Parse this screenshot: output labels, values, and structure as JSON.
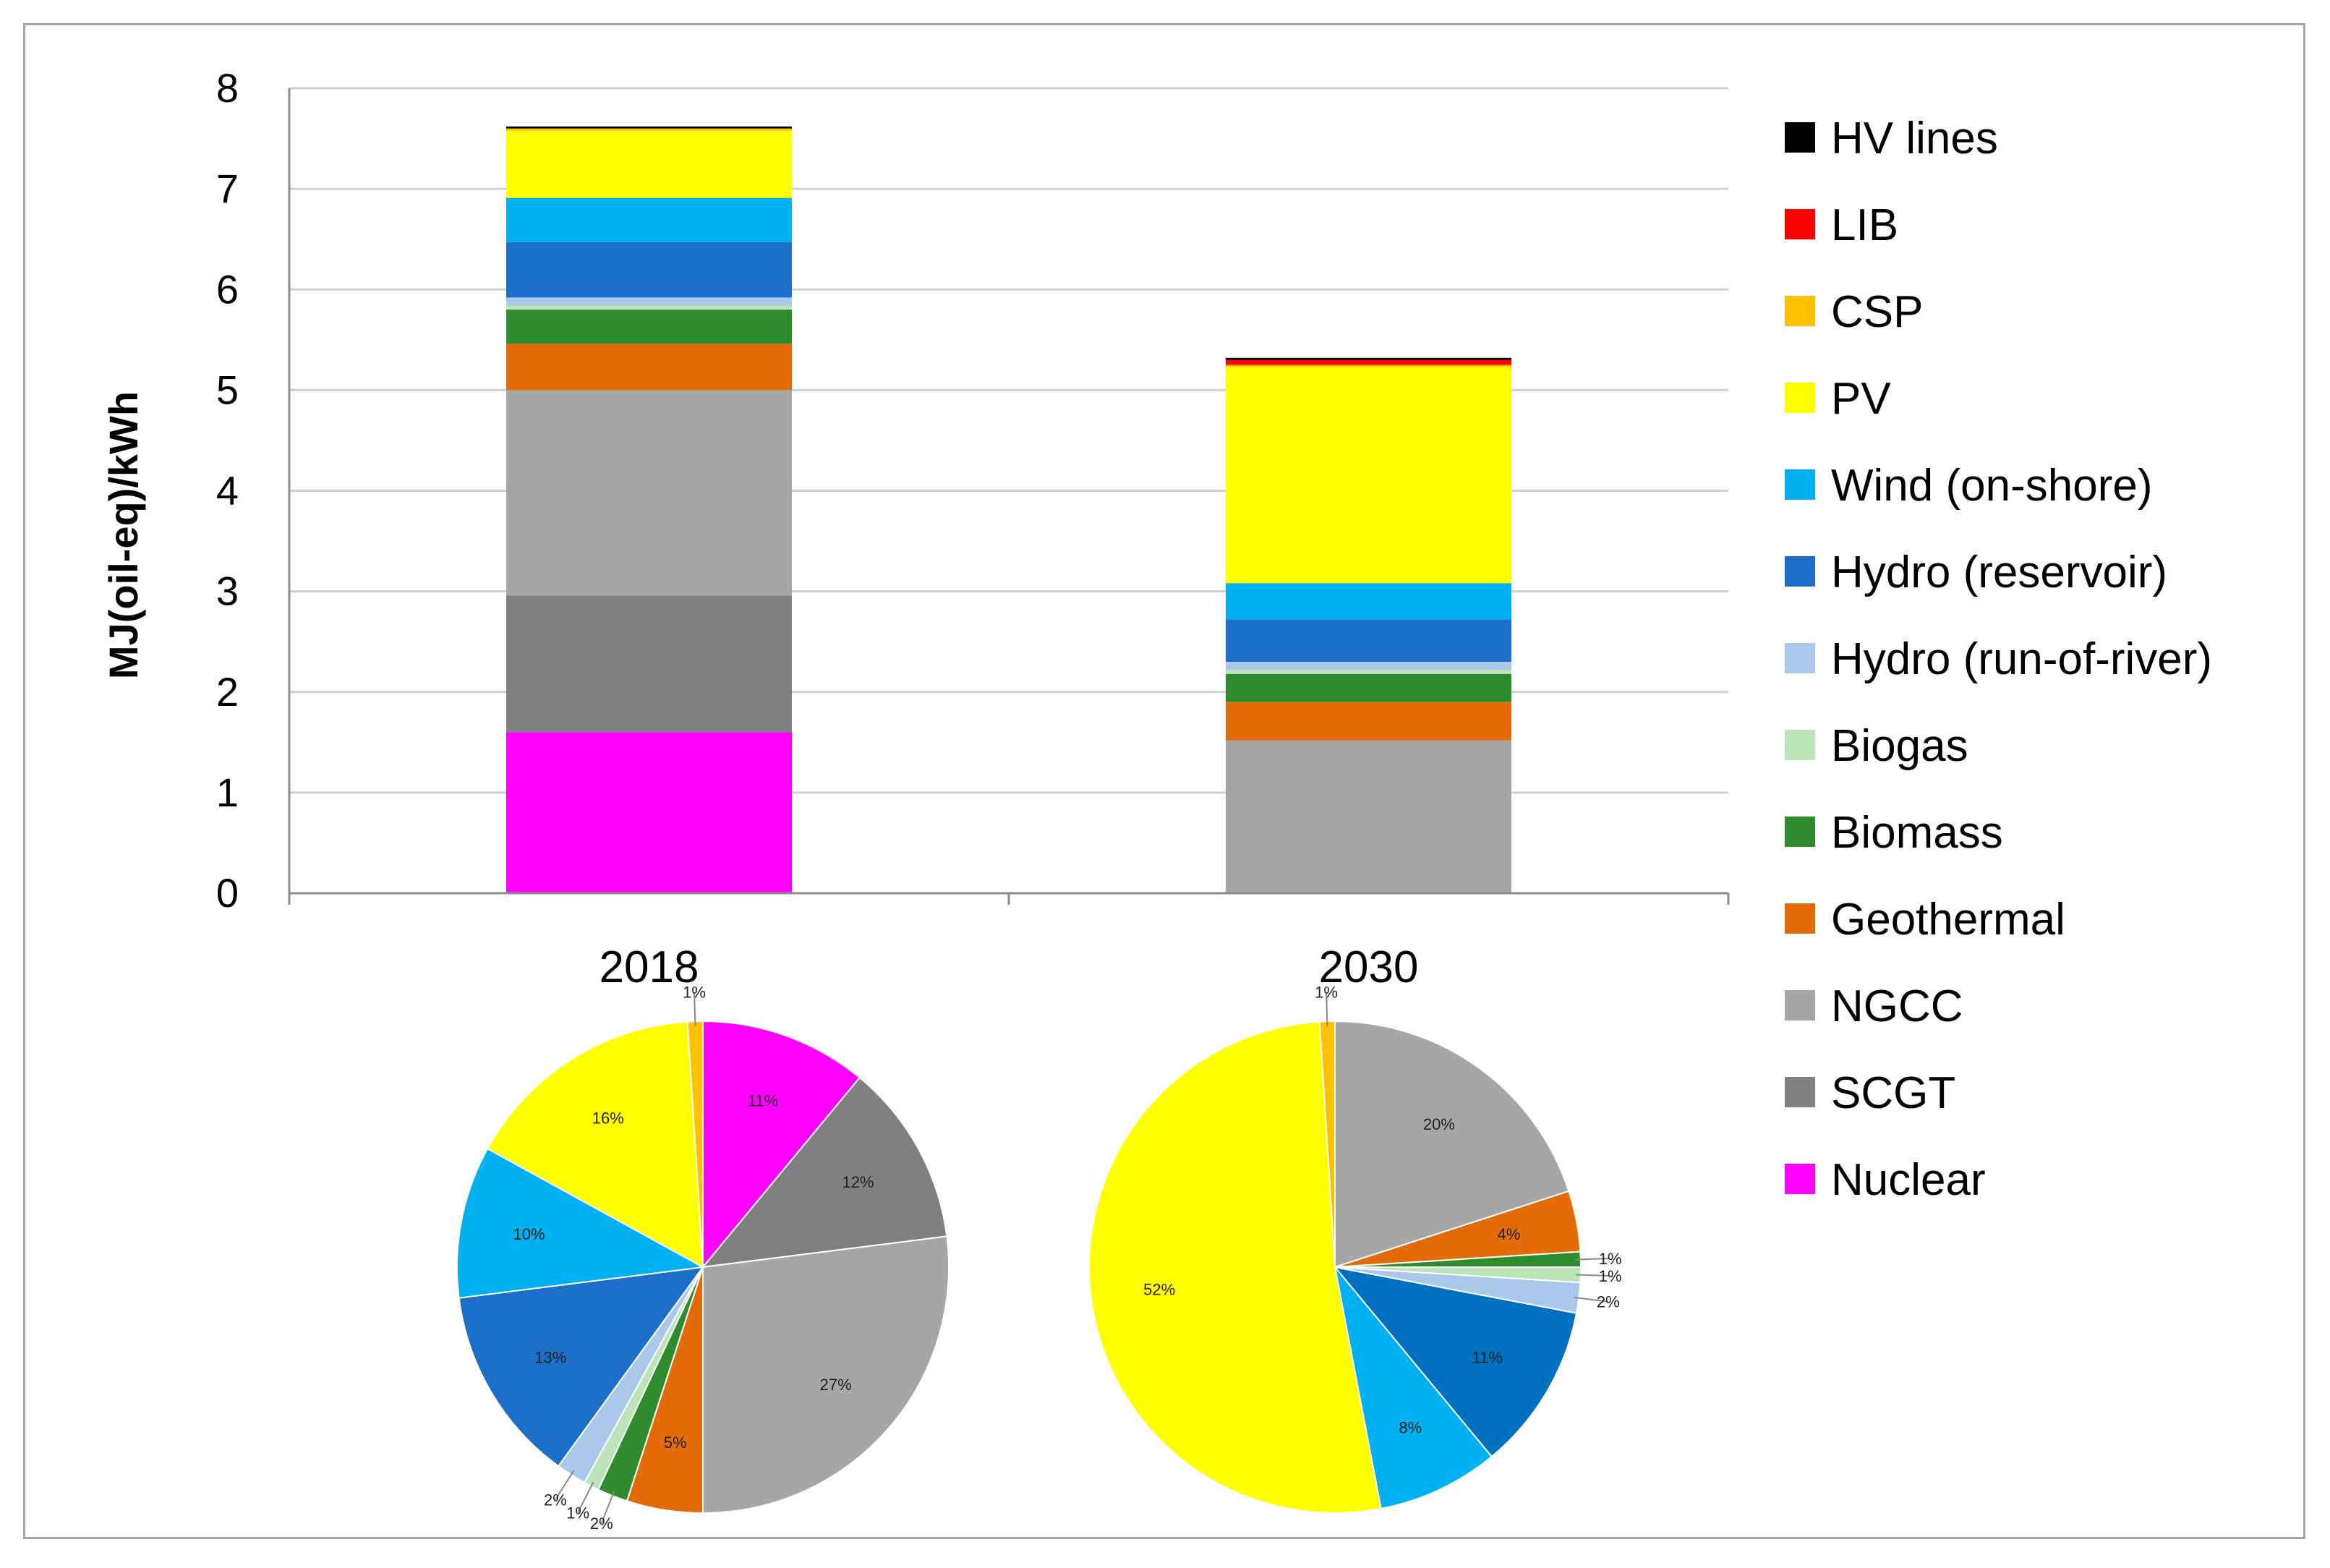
{
  "chart_data": [
    {
      "type": "bar",
      "stacked": true,
      "ylabel": "MJ(oil-eq)/kWh",
      "ylim": [
        0,
        8
      ],
      "yticks": [
        "0",
        "1",
        "2",
        "3",
        "4",
        "5",
        "6",
        "7",
        "8"
      ],
      "categories": [
        "2018",
        "2030"
      ],
      "grid": true,
      "legend_position": "right",
      "series": [
        {
          "name": "Nuclear",
          "color": "#ff00ff",
          "values": [
            1.6,
            0.0
          ]
        },
        {
          "name": "SCGT",
          "color": "#808080",
          "values": [
            1.36,
            0.0
          ]
        },
        {
          "name": "NGCC",
          "color": "#a6a6a6",
          "values": [
            2.04,
            1.52
          ]
        },
        {
          "name": "Geothermal",
          "color": "#e36c09",
          "values": [
            0.46,
            0.38
          ]
        },
        {
          "name": "Biomass",
          "color": "#2e8b2e",
          "values": [
            0.34,
            0.28
          ]
        },
        {
          "name": "Biogas",
          "color": "#bde3b9",
          "values": [
            0.04,
            0.04
          ]
        },
        {
          "name": "Hydro (run-of-river)",
          "color": "#a9c8ea",
          "values": [
            0.08,
            0.08
          ]
        },
        {
          "name": "Hydro (reservoir)",
          "color": "#1c6fc9",
          "values": [
            0.55,
            0.42
          ]
        },
        {
          "name": "Wind (on-shore)",
          "color": "#00b0f0",
          "values": [
            0.44,
            0.36
          ]
        },
        {
          "name": "PV",
          "color": "#ffff00",
          "values": [
            0.67,
            2.15
          ]
        },
        {
          "name": "CSP",
          "color": "#ffc000",
          "values": [
            0.02,
            0.02
          ]
        },
        {
          "name": "LIB",
          "color": "#ff0000",
          "values": [
            0.0,
            0.05
          ]
        },
        {
          "name": "HV lines",
          "color": "#000000",
          "values": [
            0.02,
            0.02
          ]
        }
      ],
      "legend": [
        "HV lines",
        "LIB",
        "CSP",
        "PV",
        "Wind (on-shore)",
        "Hydro (reservoir)",
        "Hydro (run-of-river)",
        "Biogas",
        "Biomass",
        "Geothermal",
        "NGCC",
        "SCGT",
        "Nuclear"
      ]
    },
    {
      "type": "pie",
      "title": "2018",
      "slices": [
        {
          "name": "Nuclear",
          "color": "#ff00ff",
          "value": 11,
          "label": "11%"
        },
        {
          "name": "SCGT",
          "color": "#808080",
          "value": 12,
          "label": "12%"
        },
        {
          "name": "NGCC",
          "color": "#a6a6a6",
          "value": 27,
          "label": "27%"
        },
        {
          "name": "Geothermal",
          "color": "#e36c09",
          "value": 5,
          "label": "5%"
        },
        {
          "name": "Biomass",
          "color": "#2e8b2e",
          "value": 2,
          "label": "2%"
        },
        {
          "name": "Biogas",
          "color": "#bde3b9",
          "value": 1,
          "label": "1%"
        },
        {
          "name": "Hydro (run-of-river)",
          "color": "#a9c8ea",
          "value": 2,
          "label": "2%"
        },
        {
          "name": "Hydro (reservoir)",
          "color": "#1c6fc9",
          "value": 13,
          "label": "13%"
        },
        {
          "name": "Wind (on-shore)",
          "color": "#00b0f0",
          "value": 10,
          "label": "10%"
        },
        {
          "name": "PV",
          "color": "#ffff00",
          "value": 16,
          "label": "16%"
        },
        {
          "name": "CSP",
          "color": "#ffc000",
          "value": 1,
          "label": "1%"
        }
      ]
    },
    {
      "type": "pie",
      "title": "2030",
      "slices": [
        {
          "name": "NGCC",
          "color": "#a6a6a6",
          "value": 20,
          "label": "20%"
        },
        {
          "name": "Geothermal",
          "color": "#e36c09",
          "value": 4,
          "label": "4%"
        },
        {
          "name": "Biomass",
          "color": "#2e8b2e",
          "value": 1,
          "label": "1%"
        },
        {
          "name": "Biogas",
          "color": "#bde3b9",
          "value": 1,
          "label": "1%"
        },
        {
          "name": "Hydro (run-of-river)",
          "color": "#a9c8ea",
          "value": 2,
          "label": "2%"
        },
        {
          "name": "Hydro (reservoir)",
          "color": "#0070c0",
          "value": 11,
          "label": "11%"
        },
        {
          "name": "Wind (on-shore)",
          "color": "#00b0f0",
          "value": 8,
          "label": "8%"
        },
        {
          "name": "PV",
          "color": "#ffff00",
          "value": 52,
          "label": "52%"
        },
        {
          "name": "CSP",
          "color": "#ffc000",
          "value": 1,
          "label": "1%"
        }
      ]
    }
  ]
}
